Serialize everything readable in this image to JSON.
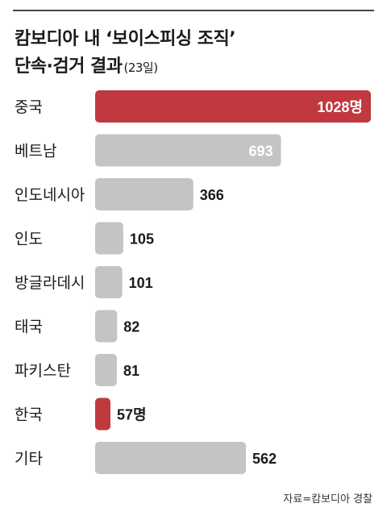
{
  "header": {
    "title_line1": "캄보디아 내 ‘보이스피싱 조직’",
    "title_line2": "단속·검거 결과",
    "title_note": "(23일)"
  },
  "chart_data": {
    "type": "bar",
    "orientation": "horizontal",
    "categories": [
      "중국",
      "베트남",
      "인도네시아",
      "인도",
      "방글라데시",
      "태국",
      "파키스탄",
      "한국",
      "기타"
    ],
    "values": [
      1028,
      693,
      366,
      105,
      101,
      82,
      81,
      57,
      562
    ],
    "value_labels": [
      "1028명",
      "693",
      "366",
      "105",
      "101",
      "82",
      "81",
      "57명",
      "562"
    ],
    "highlight": [
      true,
      false,
      false,
      false,
      false,
      false,
      false,
      true,
      false
    ],
    "colors": {
      "bar": "#c4c4c4",
      "highlight": "#c0393f",
      "label": "#1a1a1a",
      "label_on_bar": "#ffffff"
    },
    "xlim": [
      0,
      1028
    ],
    "grid": false,
    "legend": "none"
  },
  "footer": {
    "source": "자료=캄보디아 경찰"
  }
}
